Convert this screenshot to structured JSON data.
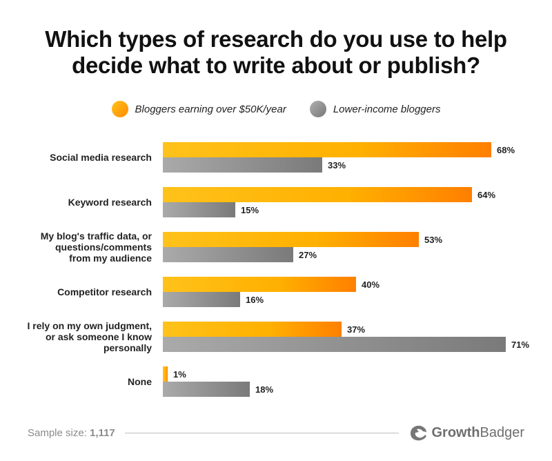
{
  "chart_data": {
    "type": "bar",
    "orientation": "horizontal",
    "title_lines": [
      "Which types of research do you use to help",
      "decide what to write about or publish?"
    ],
    "categories": [
      [
        "Social media research"
      ],
      [
        "Keyword research"
      ],
      [
        "My blog's traffic data, or",
        "questions/comments",
        "from my audience"
      ],
      [
        "Competitor research"
      ],
      [
        "I rely on my own judgment,",
        "or ask someone I know",
        "personally"
      ],
      [
        "None"
      ]
    ],
    "series": [
      {
        "name": "Bloggers earning over $50K/year",
        "values": [
          68,
          64,
          53,
          40,
          37,
          1
        ],
        "color": "#ffb100"
      },
      {
        "name": "Lower-income bloggers",
        "values": [
          33,
          15,
          27,
          16,
          71,
          18
        ],
        "color": "#8c8c8c"
      }
    ],
    "value_suffix": "%",
    "xlim": [
      0,
      100
    ],
    "legend_position": "top-center",
    "grid": false
  },
  "colors": {
    "orange_start": "#ffc21a",
    "orange_end": "#ff7f00",
    "gray_start": "#aaaaaa",
    "gray_end": "#7a7a7a"
  },
  "footer": {
    "sample_label": "Sample size:",
    "sample_value": "1,117",
    "brand_bold": "Growth",
    "brand_regular": "Badger",
    "brand_icon": "badger-logo-icon"
  }
}
